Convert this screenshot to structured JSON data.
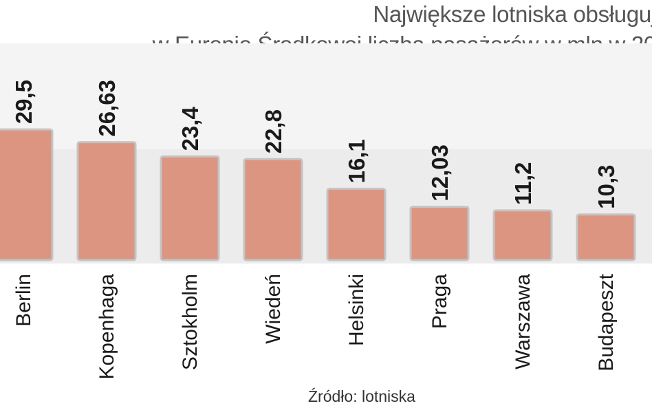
{
  "title_lines": [
    "Największe lotniska obsługuj",
    "w Europie Środkowej liczba pasażerów w mln w 20"
  ],
  "source": "Źródło: lotniska",
  "colors": {
    "band": "#ececec",
    "bar_fill": "#dc9580",
    "bar_stroke": "#c4c4c4",
    "value_text": "#1a1a1a",
    "label_text": "#1a1a1a"
  },
  "chart_data": {
    "type": "bar",
    "title": "Największe lotniska obsługuj… w Europie Środkowej liczba pasażerów w mln w 20…",
    "categories": [
      "Berlin",
      "Kopenhaga",
      "Sztokholm",
      "Wiedeń",
      "Helsinki",
      "Praga",
      "Warszawa",
      "Budapeszt"
    ],
    "values": [
      29.5,
      26.63,
      23.4,
      22.8,
      16.1,
      12.03,
      11.2,
      10.3
    ],
    "value_labels": [
      "29,5",
      "26,63",
      "23,4",
      "22,8",
      "16,1",
      "12,03",
      "11,2",
      "10,3"
    ],
    "xlabel": "",
    "ylabel": "",
    "ylim": [
      0,
      30
    ],
    "grid": false,
    "legend": "none"
  }
}
